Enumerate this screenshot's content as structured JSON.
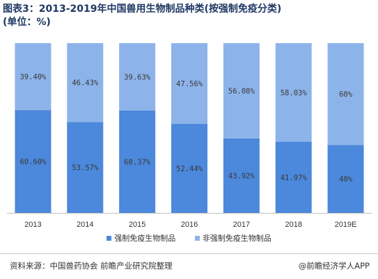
{
  "header": {
    "title_line1": "图表3：2013-2019年中国兽用生物制品种类(按强制免疫分类)",
    "title_line2": "(单位：%)"
  },
  "colors": {
    "compulsory": "#4c88db",
    "non_compulsory": "#8db4ea",
    "label_text": "#3a3a3a",
    "axis": "#bfbfbf"
  },
  "chart_data": {
    "type": "bar",
    "stacked": true,
    "categories": [
      "2013",
      "2014",
      "2015",
      "2016",
      "2017",
      "2018",
      "2019E"
    ],
    "series": [
      {
        "name": "强制免疫生物制品",
        "values": [
          60.6,
          53.57,
          60.37,
          52.44,
          43.92,
          41.97,
          40
        ]
      },
      {
        "name": "非强制免疫生物制品",
        "values": [
          39.4,
          46.43,
          39.63,
          47.56,
          56.08,
          58.03,
          60
        ]
      }
    ],
    "labels_bottom": [
      "60.60%",
      "53.57%",
      "60.37%",
      "52.44%",
      "43.92%",
      "41.97%",
      "40%"
    ],
    "labels_top": [
      "39.40%",
      "46.43%",
      "39.63%",
      "47.56%",
      "56.08%",
      "58.03%",
      "60%"
    ],
    "ylim": [
      0,
      100
    ],
    "legend": "bottom-center",
    "grid": false
  },
  "footer": {
    "source": "资料来源：中国兽药协会 前瞻产业研究院整理",
    "brand": "@前瞻经济学人APP"
  }
}
